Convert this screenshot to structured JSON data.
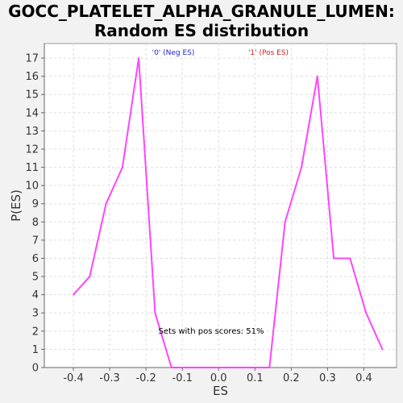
{
  "chart_data": {
    "type": "line",
    "title_line1": "GOCC_PLATELET_ALPHA_GRANULE_LUMEN:",
    "title_line2": "Random ES distribution",
    "xlabel": "ES",
    "ylabel": "P(ES)",
    "xlim": [
      -0.48,
      0.49
    ],
    "ylim": [
      0,
      17.8
    ],
    "xticks": [
      -0.4,
      -0.3,
      -0.2,
      -0.1,
      0.0,
      0.1,
      0.2,
      0.3,
      0.4
    ],
    "xtick_labels": [
      "-0.4",
      "-0.3",
      "-0.2",
      "-0.1",
      "0.0",
      "0.1",
      "0.2",
      "0.3",
      "0.4"
    ],
    "yticks": [
      0,
      1,
      2,
      3,
      4,
      5,
      6,
      7,
      8,
      9,
      10,
      11,
      12,
      13,
      14,
      15,
      16,
      17
    ],
    "grid": true,
    "line_color": "#ff44ff",
    "legend": [
      {
        "label": "'0' (Neg ES)",
        "color": "#2222cc"
      },
      {
        "label": "'1' (Pos ES)",
        "color": "#cc2222"
      }
    ],
    "annotation": "Sets with pos scores: 51%",
    "series": [
      {
        "x": [
          -0.4,
          -0.355,
          -0.31,
          -0.265,
          -0.22,
          -0.175,
          -0.13,
          -0.085,
          -0.04,
          0.005,
          0.05,
          0.095,
          0.14,
          0.183,
          0.228,
          0.272,
          0.317,
          0.362,
          0.406,
          0.451
        ],
        "y": [
          4,
          5,
          9,
          11,
          17,
          3,
          0,
          0,
          0,
          0,
          0,
          0,
          0,
          8,
          11,
          16,
          6,
          6,
          3,
          1
        ]
      }
    ]
  }
}
